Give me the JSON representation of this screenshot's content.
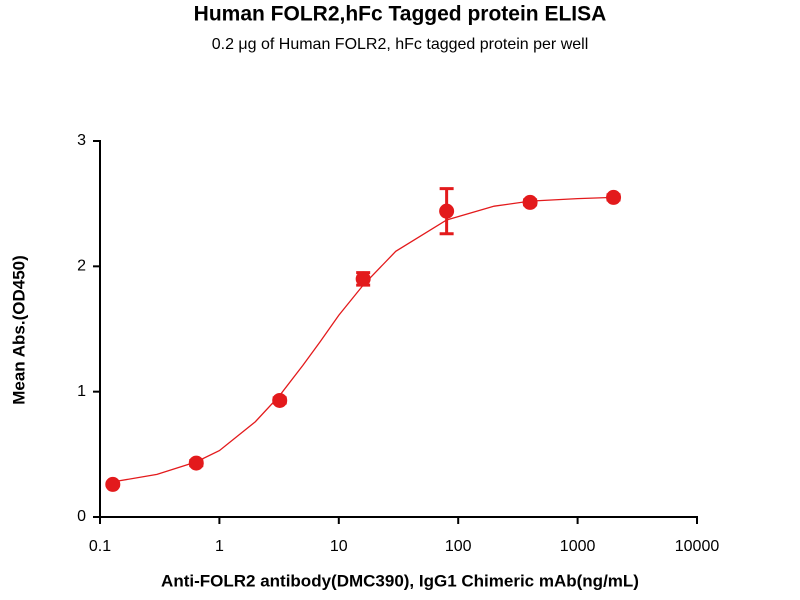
{
  "chart_data": {
    "type": "scatter",
    "title": "Human FOLR2,hFc Tagged protein ELISA",
    "subtitle": "0.2 μg of Human FOLR2, hFc tagged protein per well",
    "x_label": "Anti-FOLR2 antibody(DMC390), IgG1 Chimeric mAb(ng/mL)",
    "y_label": "Mean Abs.(OD450)",
    "x_scale": "log",
    "color": "#e31a1c",
    "x": [
      0.128,
      0.64,
      3.2,
      16,
      80,
      400,
      2000
    ],
    "values": [
      0.26,
      0.43,
      0.93,
      1.9,
      2.44,
      2.51,
      2.55
    ],
    "errors": [
      0.01,
      0.02,
      0.02,
      0.05,
      0.18,
      0.02,
      0.02
    ],
    "fit_curve": {
      "x": [
        0.128,
        0.3,
        0.64,
        1,
        2,
        3.2,
        5,
        7,
        10,
        16,
        30,
        80,
        200,
        400,
        1000,
        2000
      ],
      "values": [
        0.28,
        0.34,
        0.44,
        0.53,
        0.76,
        0.97,
        1.21,
        1.4,
        1.61,
        1.85,
        2.12,
        2.37,
        2.48,
        2.52,
        2.54,
        2.55
      ]
    },
    "xlim": [
      0.1,
      10000
    ],
    "xticks": [
      0.1,
      1,
      10,
      100,
      1000,
      10000
    ],
    "ylim": [
      0,
      3
    ],
    "yticks": [
      0,
      1,
      2,
      3
    ]
  }
}
